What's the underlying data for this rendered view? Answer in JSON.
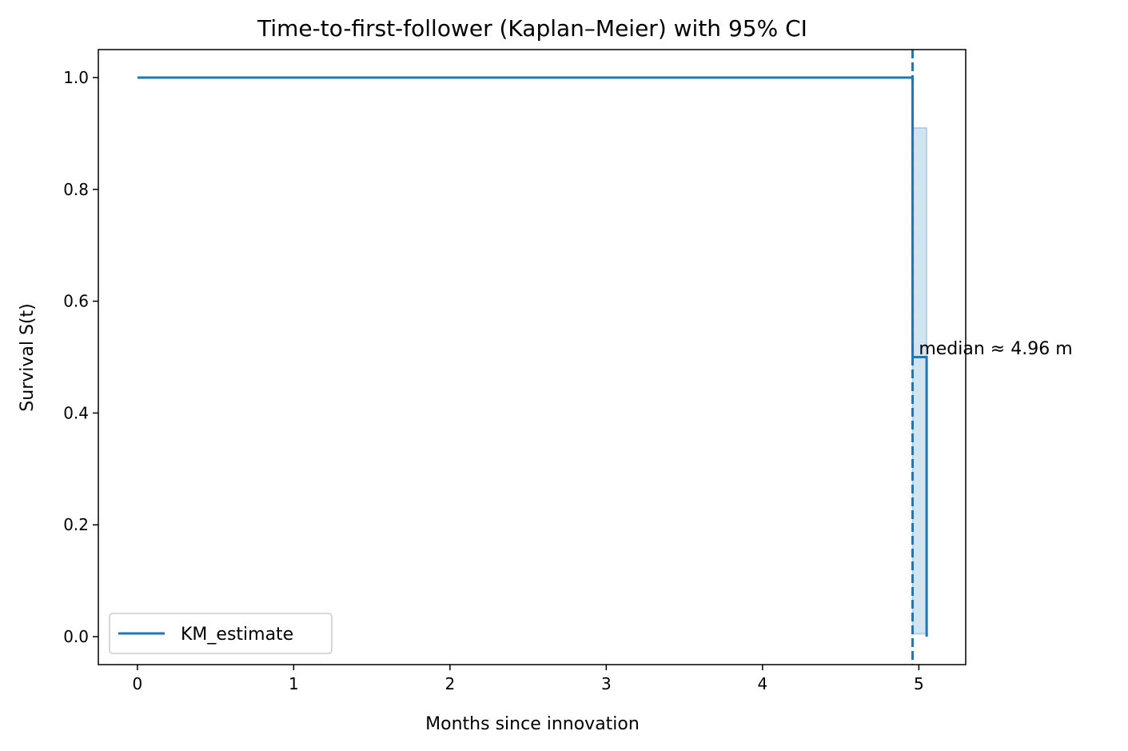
{
  "chart_data": {
    "type": "line",
    "title": "Time-to-first-follower (Kaplan–Meier) with 95% CI",
    "xlabel": "Months since innovation",
    "ylabel": "Survival S(t)",
    "xlim": [
      -0.25,
      5.3
    ],
    "ylim": [
      -0.05,
      1.05
    ],
    "xticks": [
      0,
      1,
      2,
      3,
      4,
      5
    ],
    "yticks": [
      0.0,
      0.2,
      0.4,
      0.6,
      0.8,
      1.0
    ],
    "xtick_labels": [
      "0",
      "1",
      "2",
      "3",
      "4",
      "5"
    ],
    "ytick_labels": [
      "0.0",
      "0.2",
      "0.4",
      "0.6",
      "0.8",
      "1.0"
    ],
    "grid": false,
    "legend": {
      "position": "lower-left",
      "entries": [
        "KM_estimate"
      ]
    },
    "series": [
      {
        "name": "KM_estimate",
        "color": "#1f77b4",
        "step": "post",
        "x": [
          0.0,
          4.96,
          5.05
        ],
        "y": [
          1.0,
          0.5,
          0.0
        ]
      }
    ],
    "confidence_band": {
      "color": "#1f77b4",
      "opacity": 0.2,
      "x": [
        4.96,
        5.05
      ],
      "lower": [
        0.005,
        0.005
      ],
      "upper": [
        0.91,
        0.91
      ]
    },
    "median_line": {
      "x": 4.96,
      "style": "dashed",
      "color": "#1f77b4"
    },
    "annotation": {
      "text": "median ≈ 4.96 m",
      "x": 5.0,
      "y": 0.505
    }
  }
}
